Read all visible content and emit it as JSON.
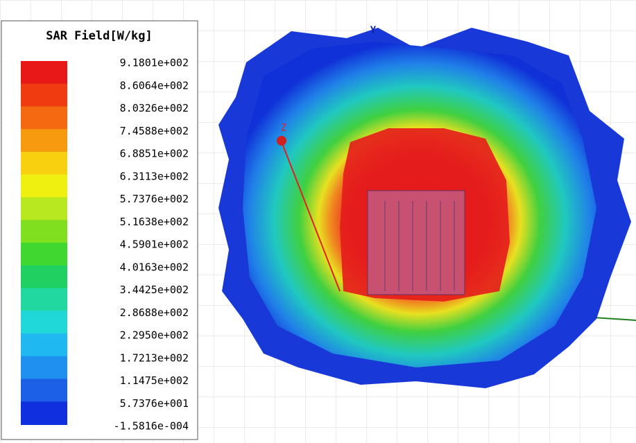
{
  "legend": {
    "title": "SAR Field[W/kg]",
    "labels": [
      "9.1801e+002",
      "8.6064e+002",
      "8.0326e+002",
      "7.4588e+002",
      "6.8851e+002",
      "6.3113e+002",
      "5.7376e+002",
      "5.1638e+002",
      "4.5901e+002",
      "4.0163e+002",
      "3.4425e+002",
      "2.8688e+002",
      "2.2950e+002",
      "1.7213e+002",
      "1.1475e+002",
      "5.7376e+001",
      "-1.5816e-004"
    ],
    "colors": [
      "#e81818",
      "#f03a10",
      "#f56a10",
      "#f89a10",
      "#f8d010",
      "#f0f010",
      "#b8e820",
      "#80e020",
      "#40d830",
      "#20d060",
      "#20d8a0",
      "#20d8d8",
      "#20b8f0",
      "#2090f0",
      "#1c60e8",
      "#1030e0"
    ]
  },
  "axes": {
    "y": "Y",
    "z": "Z"
  }
}
